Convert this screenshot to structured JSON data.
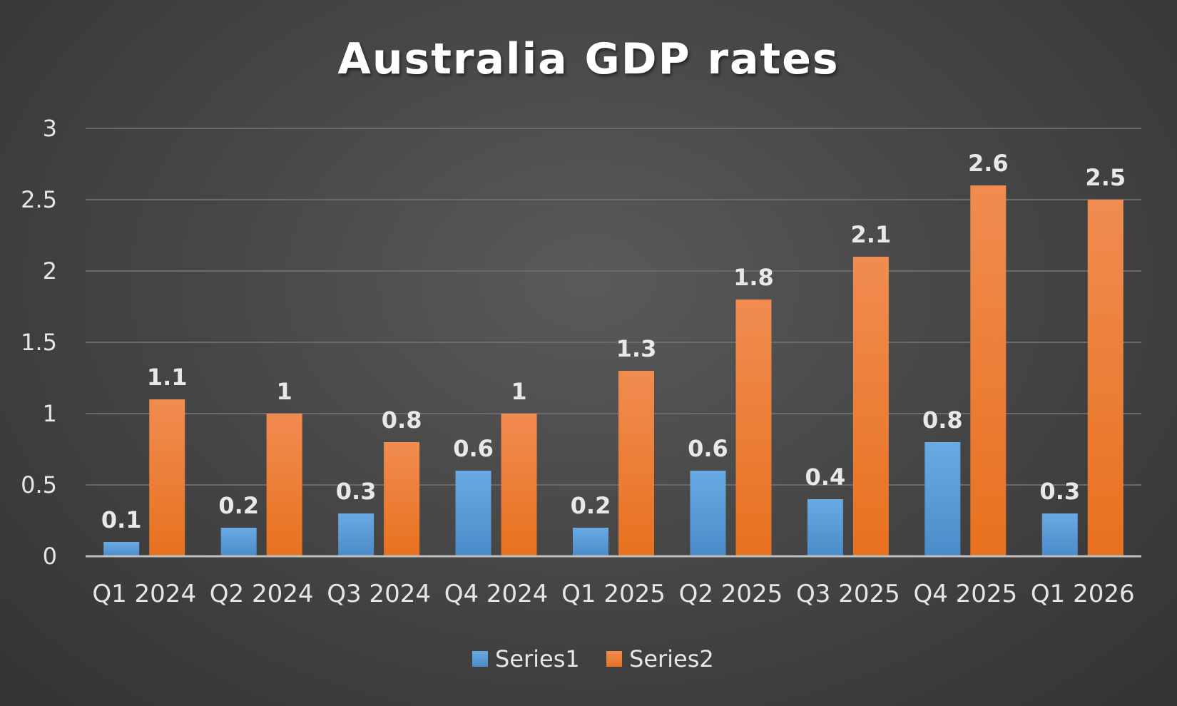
{
  "chart_data": {
    "type": "bar",
    "title": "Australia GDP rates",
    "xlabel": "",
    "ylabel": "",
    "ylim": [
      0,
      3
    ],
    "yticks": [
      0,
      0.5,
      1,
      1.5,
      2,
      2.5,
      3
    ],
    "ytick_labels": [
      "0",
      "0.5",
      "1",
      "1.5",
      "2",
      "2.5",
      "3"
    ],
    "grid": true,
    "legend_position": "bottom",
    "categories": [
      "Q1 2024",
      "Q2 2024",
      "Q3 2024",
      "Q4 2024",
      "Q1 2025",
      "Q2 2025",
      "Q3 2025",
      "Q4 2025",
      "Q1 2026"
    ],
    "series": [
      {
        "name": "Series1",
        "color": "#5b9bd5",
        "values": [
          0.1,
          0.2,
          0.3,
          0.6,
          0.2,
          0.6,
          0.4,
          0.8,
          0.3
        ],
        "labels": [
          "0.1",
          "0.2",
          "0.3",
          "0.6",
          "0.2",
          "0.6",
          "0.4",
          "0.8",
          "0.3"
        ]
      },
      {
        "name": "Series2",
        "color": "#ed7d31",
        "values": [
          1.1,
          1.0,
          0.8,
          1.0,
          1.3,
          1.8,
          2.1,
          2.6,
          2.5
        ],
        "labels": [
          "1.1",
          "1",
          "0.8",
          "1",
          "1.3",
          "1.8",
          "2.1",
          "2.6",
          "2.5"
        ]
      }
    ]
  }
}
